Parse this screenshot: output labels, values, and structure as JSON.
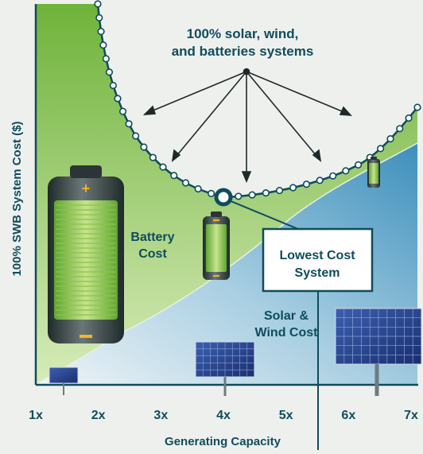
{
  "chart_data": {
    "type": "area",
    "ylabel": "100% SWB System Cost ($)",
    "xlabel": "Generating Capacity",
    "x_ticks": [
      "1x",
      "2x",
      "3x",
      "4x",
      "5x",
      "6x",
      "7x"
    ],
    "xlim": [
      1,
      7
    ],
    "series": [
      {
        "name": "Battery Cost",
        "color": "#8dc63f"
      },
      {
        "name": "Solar & Wind Cost",
        "color": "#5aa3c8"
      }
    ],
    "annotations": {
      "curve_label_line1": "100% solar, wind,",
      "curve_label_line2": "and batteries systems",
      "battery_line1": "Battery",
      "battery_line2": "Cost",
      "solar_line1": "Solar &",
      "solar_line2": "Wind Cost",
      "optimum_line1": "Lowest Cost",
      "optimum_line2": "System"
    },
    "optimum_x": 4,
    "colors": {
      "battery": "#8dc63f",
      "solar": "#5aa3c8",
      "line": "#0f4c5c",
      "background": "#eef0ee"
    }
  }
}
